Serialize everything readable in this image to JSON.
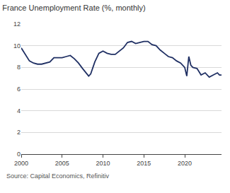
{
  "chart_data": {
    "type": "line",
    "title": "France Unemployment Rate (%, monthly)",
    "source": "Source: Capital Economics, Refinitiv",
    "x": [
      2000.0,
      2000.5,
      2001.0,
      2001.5,
      2002.0,
      2002.5,
      2003.0,
      2003.5,
      2004.0,
      2004.5,
      2005.0,
      2005.5,
      2006.0,
      2006.5,
      2007.0,
      2007.5,
      2008.0,
      2008.25,
      2008.5,
      2009.0,
      2009.5,
      2010.0,
      2010.5,
      2011.0,
      2011.5,
      2012.0,
      2012.5,
      2013.0,
      2013.5,
      2014.0,
      2014.5,
      2015.0,
      2015.5,
      2016.0,
      2016.5,
      2017.0,
      2017.5,
      2018.0,
      2018.5,
      2019.0,
      2019.5,
      2020.0,
      2020.25,
      2020.5,
      2020.75,
      2021.0,
      2021.5,
      2022.0,
      2022.5,
      2023.0,
      2023.5,
      2024.0,
      2024.25,
      2024.5
    ],
    "values": [
      9.8,
      9.2,
      8.6,
      8.4,
      8.3,
      8.3,
      8.4,
      8.5,
      8.9,
      8.9,
      8.9,
      9.0,
      9.1,
      8.8,
      8.4,
      7.9,
      7.4,
      7.2,
      7.4,
      8.5,
      9.3,
      9.5,
      9.3,
      9.2,
      9.2,
      9.5,
      9.8,
      10.3,
      10.4,
      10.2,
      10.3,
      10.4,
      10.4,
      10.1,
      10.0,
      9.6,
      9.3,
      9.0,
      8.9,
      8.6,
      8.4,
      8.0,
      7.2,
      9.0,
      8.2,
      8.0,
      7.9,
      7.3,
      7.5,
      7.1,
      7.3,
      7.5,
      7.3,
      7.3
    ],
    "color": "#1f2f63",
    "xlim": [
      2000,
      2024.5
    ],
    "xticks": [
      2000,
      2005,
      2010,
      2015,
      2020
    ],
    "ylim": [
      0,
      12
    ],
    "yticks": [
      0,
      2,
      4,
      6,
      8,
      10,
      12
    ],
    "grid": true
  }
}
